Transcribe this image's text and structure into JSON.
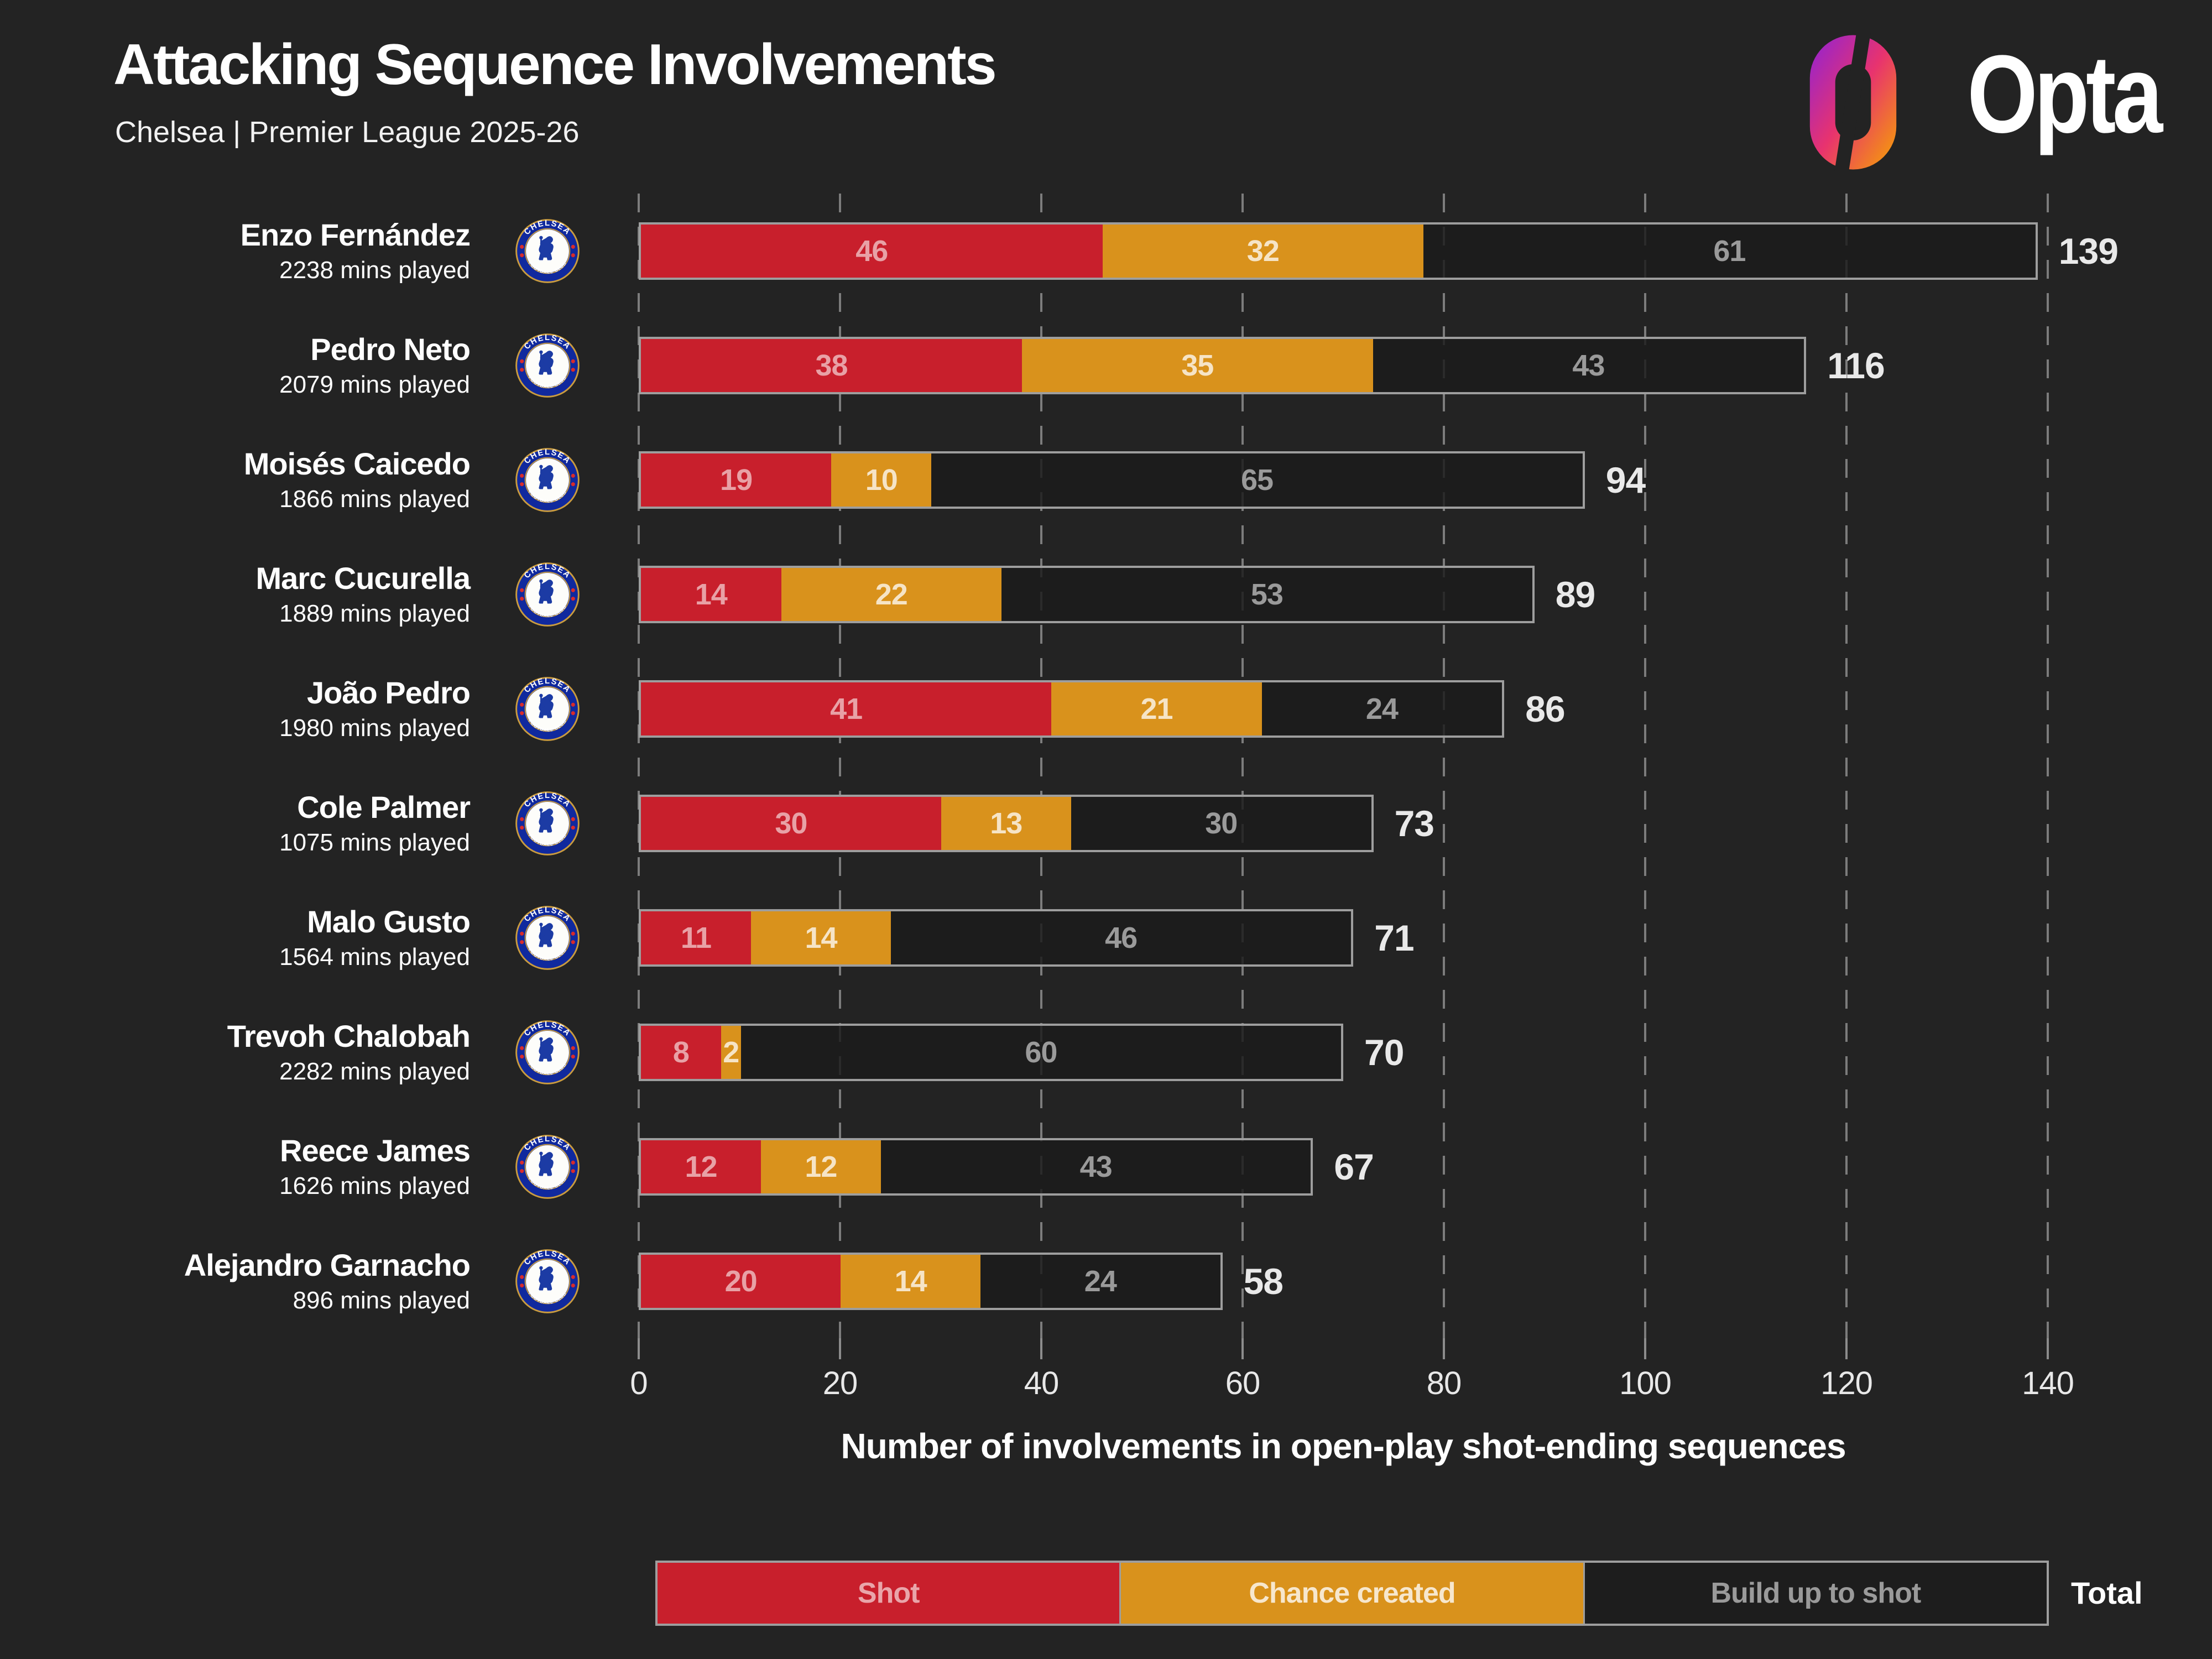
{
  "header": {
    "title": "Attacking Sequence Involvements",
    "subtitle": "Chelsea | Premier League 2025-26",
    "brand": "Opta"
  },
  "badge": {
    "top_text": "CHELSEA",
    "bottom_text": "FOOTBALL CLUB"
  },
  "colors": {
    "background": "#232323",
    "shot": "#C81F2C",
    "chance_created": "#D9921C",
    "build_up_to_shot": "#1d1d1d",
    "bar_border": "#9e9e9e",
    "gridline": "#8c8c8c",
    "opta_gradient": [
      "#8f22d6",
      "#e8336e",
      "#f6a500"
    ],
    "chelsea_blue": "#1C3BA4",
    "chelsea_gold": "#C99B3F"
  },
  "chart_data": {
    "type": "bar",
    "orientation": "horizontal",
    "stacked": true,
    "xlabel": "Number of involvements in open-play shot-ending sequences",
    "xlim": [
      0,
      140
    ],
    "xticks": [
      0,
      20,
      40,
      60,
      80,
      100,
      120,
      140
    ],
    "grid": "dashed-vertical",
    "legend_position": "bottom",
    "legend": [
      "Shot",
      "Chance created",
      "Build up to shot"
    ],
    "total_label": "Total",
    "series_keys": [
      "shot",
      "chance_created",
      "build_up_to_shot"
    ],
    "players": [
      {
        "name": "Enzo Fernández",
        "mins": "2238 mins played",
        "shot": 46,
        "chance_created": 32,
        "build_up_to_shot": 61,
        "total": 139
      },
      {
        "name": "Pedro Neto",
        "mins": "2079 mins played",
        "shot": 38,
        "chance_created": 35,
        "build_up_to_shot": 43,
        "total": 116
      },
      {
        "name": "Moisés Caicedo",
        "mins": "1866 mins played",
        "shot": 19,
        "chance_created": 10,
        "build_up_to_shot": 65,
        "total": 94
      },
      {
        "name": "Marc Cucurella",
        "mins": "1889 mins played",
        "shot": 14,
        "chance_created": 22,
        "build_up_to_shot": 53,
        "total": 89
      },
      {
        "name": "João Pedro",
        "mins": "1980 mins played",
        "shot": 41,
        "chance_created": 21,
        "build_up_to_shot": 24,
        "total": 86
      },
      {
        "name": "Cole Palmer",
        "mins": "1075 mins played",
        "shot": 30,
        "chance_created": 13,
        "build_up_to_shot": 30,
        "total": 73
      },
      {
        "name": "Malo Gusto",
        "mins": "1564 mins played",
        "shot": 11,
        "chance_created": 14,
        "build_up_to_shot": 46,
        "total": 71
      },
      {
        "name": "Trevoh Chalobah",
        "mins": "2282 mins played",
        "shot": 8,
        "chance_created": 2,
        "build_up_to_shot": 60,
        "total": 70
      },
      {
        "name": "Reece James",
        "mins": "1626 mins played",
        "shot": 12,
        "chance_created": 12,
        "build_up_to_shot": 43,
        "total": 67
      },
      {
        "name": "Alejandro Garnacho",
        "mins": "896 mins played",
        "shot": 20,
        "chance_created": 14,
        "build_up_to_shot": 24,
        "total": 58
      }
    ]
  }
}
